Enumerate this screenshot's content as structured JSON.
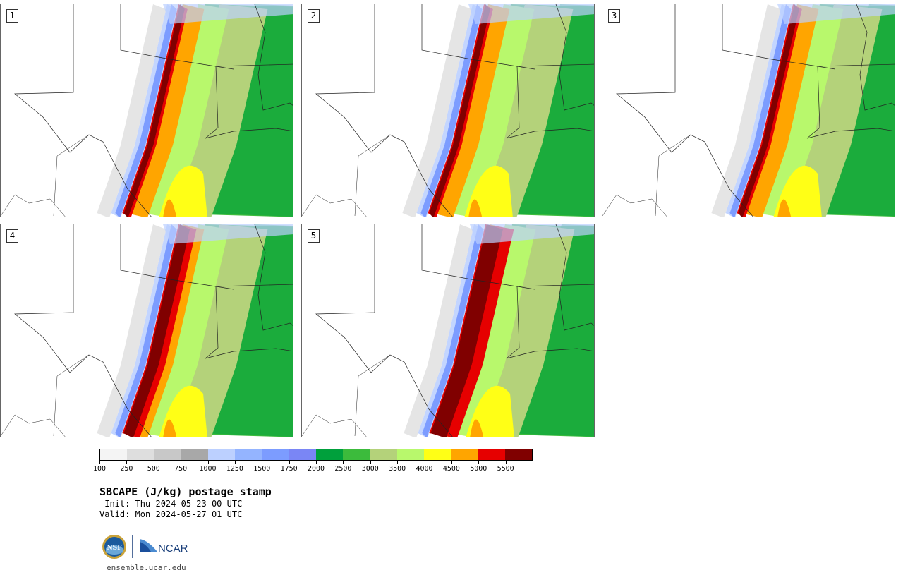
{
  "panels": [
    {
      "label": "1"
    },
    {
      "label": "2"
    },
    {
      "label": "3"
    },
    {
      "label": "4"
    },
    {
      "label": "5"
    }
  ],
  "colorbar": {
    "tick_labels": [
      "100",
      "250",
      "500",
      "750",
      "1000",
      "1250",
      "1500",
      "1750",
      "2000",
      "2500",
      "3000",
      "3500",
      "4000",
      "4500",
      "5000",
      "5500"
    ],
    "colors": [
      "#f4f4f4",
      "#dedede",
      "#c8c8c8",
      "#a8a8a8",
      "#bcd0ff",
      "#94b4ff",
      "#7c9cff",
      "#7a86f5",
      "#00a03c",
      "#3cbb3c",
      "#b4d27a",
      "#b8f86c",
      "#ffff16",
      "#ffa500",
      "#e60000",
      "#800000"
    ]
  },
  "title": "SBCAPE (J/kg) postage stamp",
  "init": " Init: Thu 2024-05-23 00 UTC",
  "valid": "Valid: Mon 2024-05-27 01 UTC",
  "logos": {
    "nsf": "NSF",
    "ncar": "NCAR"
  },
  "url": "ensemble.ucar.edu"
}
